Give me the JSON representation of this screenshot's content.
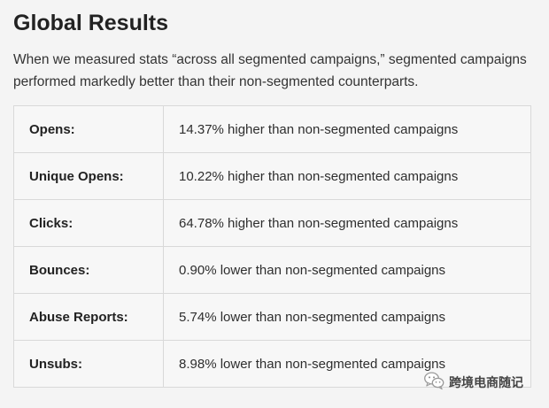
{
  "page": {
    "title": "Global Results",
    "intro": "When we measured stats “across all segmented campaigns,” segmented campaigns performed markedly better than their non-segmented counterparts."
  },
  "results_table": {
    "rows": [
      {
        "label": "Opens:",
        "value": "14.37% higher than non-segmented campaigns"
      },
      {
        "label": "Unique Opens:",
        "value": "10.22% higher than non-segmented campaigns"
      },
      {
        "label": "Clicks:",
        "value": "64.78% higher than non-segmented campaigns"
      },
      {
        "label": "Bounces:",
        "value": "0.90% lower than non-segmented campaigns"
      },
      {
        "label": "Abuse Reports:",
        "value": "5.74% lower than non-segmented campaigns"
      },
      {
        "label": "Unsubs:",
        "value": "8.98% lower than non-segmented campaigns"
      }
    ]
  },
  "watermark": {
    "icon": "wechat-icon",
    "text": "跨境电商随记"
  }
}
